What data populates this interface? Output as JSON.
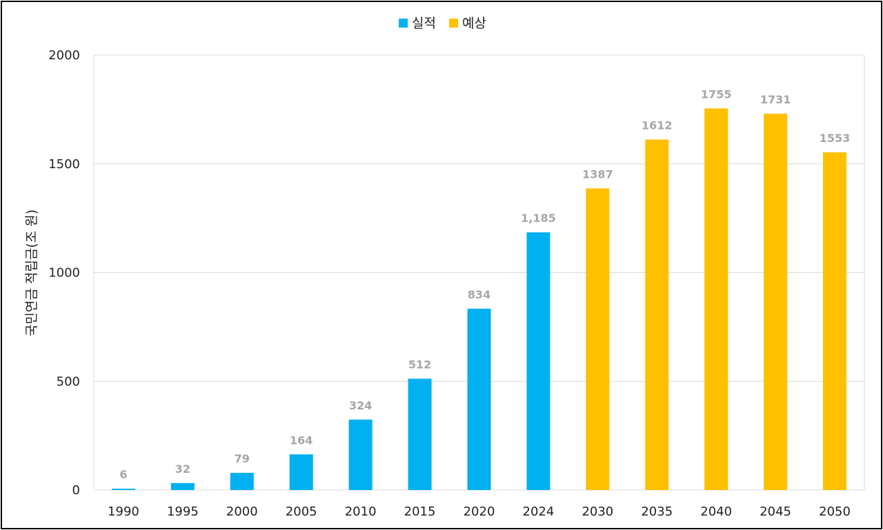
{
  "chart_data": {
    "type": "bar",
    "title": "",
    "xlabel": "",
    "ylabel": "국민연금 적립금(조 원)",
    "ylim": [
      0,
      2000
    ],
    "yticks": [
      "0",
      "500",
      "1000",
      "1500",
      "2000"
    ],
    "grid": true,
    "legend_position": "top-center",
    "categories": [
      "1990",
      "1995",
      "2000",
      "2005",
      "2010",
      "2015",
      "2020",
      "2024",
      "2030",
      "2035",
      "2040",
      "2045",
      "2050"
    ],
    "series": [
      {
        "name": "실적",
        "color": "#00b0f0",
        "values": [
          6,
          32,
          79,
          164,
          324,
          512,
          834,
          1185,
          null,
          null,
          null,
          null,
          null
        ],
        "labels": [
          "6",
          "32",
          "79",
          "164",
          "324",
          "512",
          "834",
          "1,185",
          "",
          "",
          "",
          "",
          ""
        ]
      },
      {
        "name": "예상",
        "color": "#ffc000",
        "values": [
          null,
          null,
          null,
          null,
          null,
          null,
          null,
          null,
          1387,
          1612,
          1755,
          1731,
          1553
        ],
        "labels": [
          "",
          "",
          "",
          "",
          "",
          "",
          "",
          "",
          "1387",
          "1612",
          "1755",
          "1731",
          "1553"
        ]
      }
    ]
  }
}
